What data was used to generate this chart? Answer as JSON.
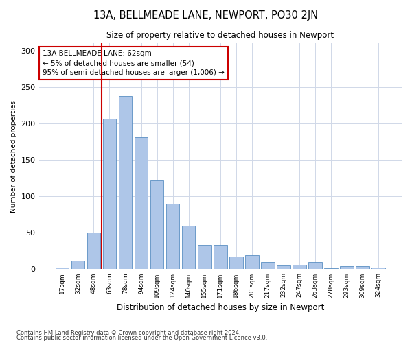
{
  "title": "13A, BELLMEADE LANE, NEWPORT, PO30 2JN",
  "subtitle": "Size of property relative to detached houses in Newport",
  "xlabel": "Distribution of detached houses by size in Newport",
  "ylabel": "Number of detached properties",
  "categories": [
    "17sqm",
    "32sqm",
    "48sqm",
    "63sqm",
    "78sqm",
    "94sqm",
    "109sqm",
    "124sqm",
    "140sqm",
    "155sqm",
    "171sqm",
    "186sqm",
    "201sqm",
    "217sqm",
    "232sqm",
    "247sqm",
    "263sqm",
    "278sqm",
    "293sqm",
    "309sqm",
    "324sqm"
  ],
  "values": [
    2,
    12,
    50,
    207,
    238,
    181,
    122,
    90,
    60,
    33,
    33,
    17,
    19,
    10,
    5,
    6,
    10,
    1,
    4,
    4,
    2
  ],
  "bar_color": "#aec6e8",
  "bar_edge_color": "#5a8fc2",
  "vline_color": "#cc0000",
  "annotation_text": "13A BELLMEADE LANE: 62sqm\n← 5% of detached houses are smaller (54)\n95% of semi-detached houses are larger (1,006) →",
  "annotation_box_color": "#ffffff",
  "annotation_box_edgecolor": "#cc0000",
  "ylim": [
    0,
    310
  ],
  "yticks": [
    0,
    50,
    100,
    150,
    200,
    250,
    300
  ],
  "background_color": "#ffffff",
  "grid_color": "#d0d8e8",
  "footnote1": "Contains HM Land Registry data © Crown copyright and database right 2024.",
  "footnote2": "Contains public sector information licensed under the Open Government Licence v3.0."
}
